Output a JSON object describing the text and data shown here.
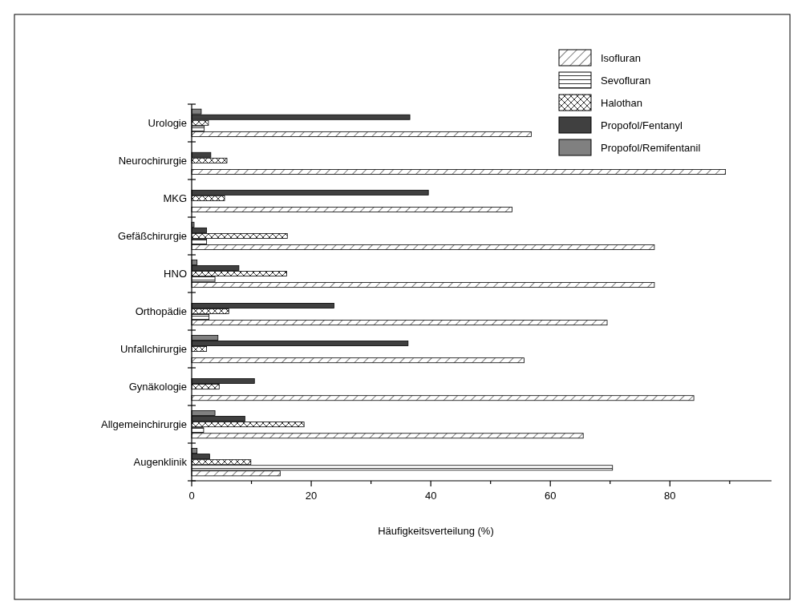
{
  "chart_data": {
    "type": "bar",
    "orientation": "horizontal",
    "xlabel": "Häufigkeitsverteilung (%)",
    "categories": [
      "Urologie",
      "Neurochirurgie",
      "MKG",
      "Gefäßchirurgie",
      "HNO",
      "Orthopädie",
      "Unfallchirurgie",
      "Gynäkologie",
      "Allgemeinchirurgie",
      "Augenklinik"
    ],
    "series": [
      {
        "name": "Isofluran",
        "color": "#ffffff",
        "values": [
          56.8,
          89.3,
          53.6,
          77.4,
          77.4,
          69.5,
          55.6,
          84,
          65.5,
          14.8
        ]
      },
      {
        "name": "Sevofluran",
        "color": "#ffffff",
        "values": [
          2.1,
          null,
          null,
          2.5,
          3.9,
          2.9,
          null,
          null,
          2.0,
          70.4
        ]
      },
      {
        "name": "Halothan",
        "color": "#ffffff",
        "values": [
          2.8,
          5.9,
          5.5,
          16.0,
          15.9,
          6.2,
          2.5,
          4.6,
          18.8,
          9.9
        ]
      },
      {
        "name": "Propofol/Fentanyl",
        "color": "#404040",
        "values": [
          36.5,
          3.2,
          39.6,
          2.5,
          7.9,
          23.8,
          36.2,
          10.5,
          8.9,
          3.0
        ]
      },
      {
        "name": "Propofol/Remifentanil",
        "color": "#808080",
        "values": [
          1.6,
          null,
          null,
          0.4,
          0.9,
          null,
          4.4,
          null,
          3.9,
          0.9
        ]
      }
    ],
    "xlim": [
      0,
      97
    ],
    "xticks": [
      0,
      {
        "value": 10,
        "label": null
      },
      20,
      {
        "value": 30,
        "label": null
      },
      40,
      {
        "value": 50,
        "label": null
      },
      60,
      {
        "value": 70,
        "label": null
      },
      80,
      {
        "value": 90,
        "label": null
      }
    ],
    "legend": "top right",
    "grid": false
  }
}
